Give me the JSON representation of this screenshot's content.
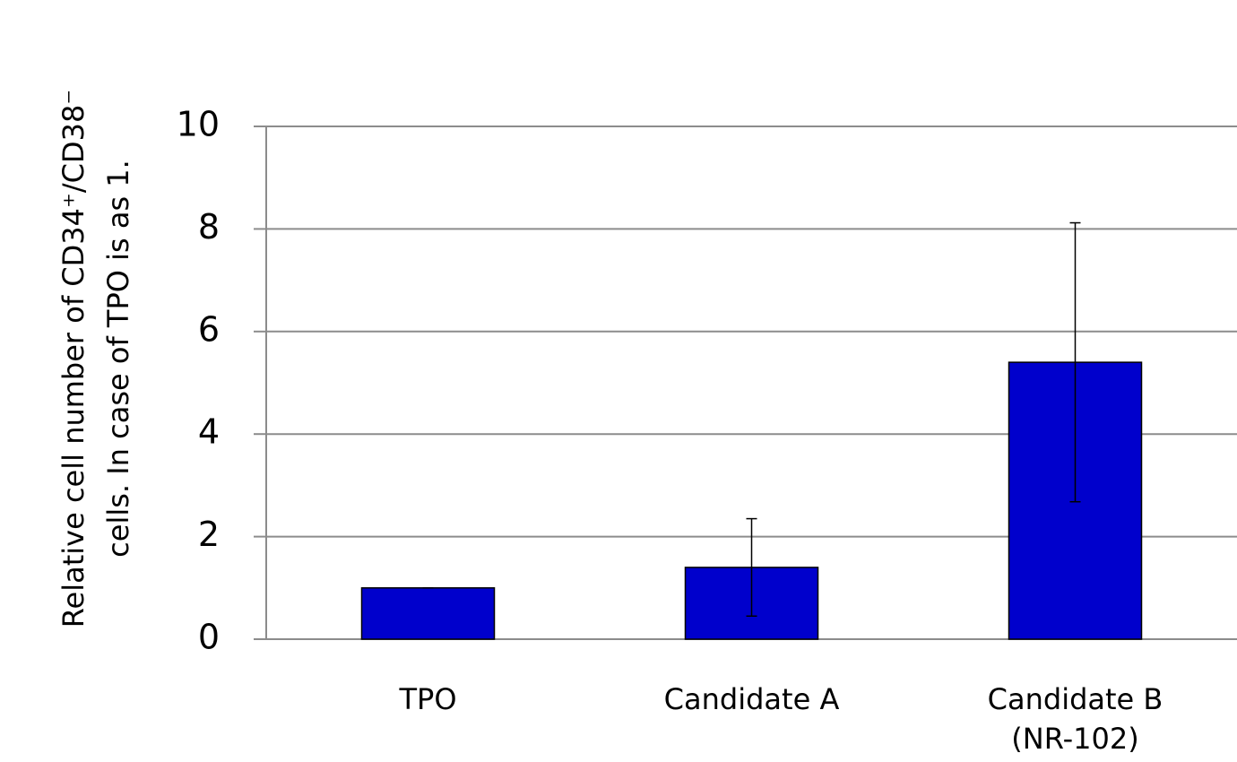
{
  "chart_data": {
    "type": "bar",
    "ylabel": [
      "Relative cell number of CD34⁺/CD38⁻",
      "cells. In case of TPO is as 1."
    ],
    "categories": [
      [
        "TPO"
      ],
      [
        "Candidate A"
      ],
      [
        "Candidate B",
        "(NR-102)"
      ]
    ],
    "values": [
      1,
      1.4,
      5.4
    ],
    "errors": [
      0,
      0.95,
      2.72
    ],
    "color": "#0000cc",
    "ylim": [
      0,
      10
    ],
    "yticks": [
      0,
      2,
      4,
      6,
      8,
      10
    ],
    "grid": true
  }
}
